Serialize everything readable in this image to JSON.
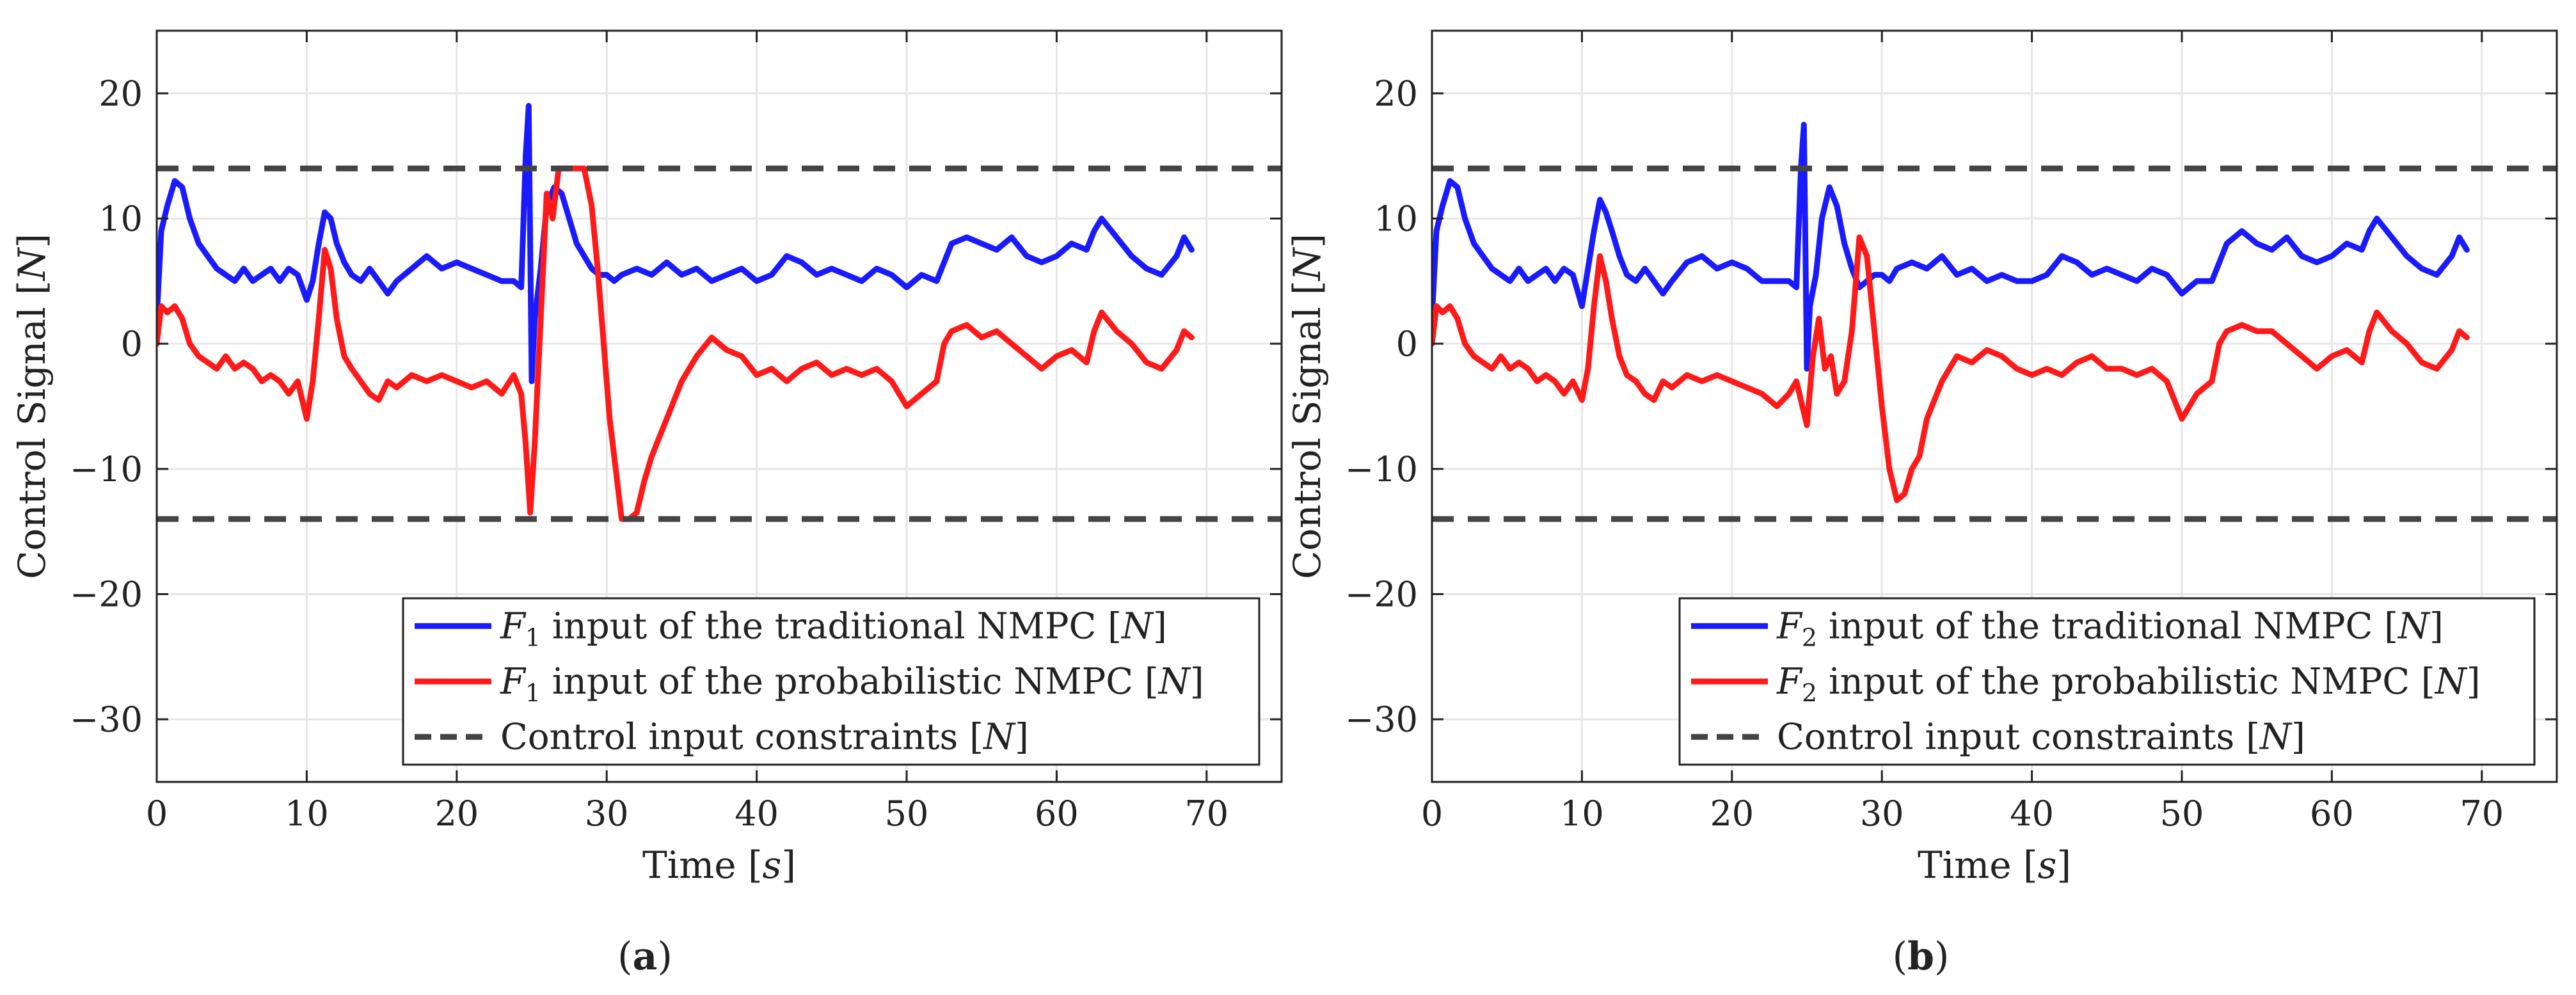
{
  "colors": {
    "traditional": "#1a1aff",
    "probabilistic": "#ff1a1a",
    "constraint": "#444444",
    "grid": "#e6e6e6",
    "axis": "#222222"
  },
  "chart_data": [
    {
      "type": "line",
      "panel_label_parts": [
        "(",
        "a",
        ")"
      ],
      "xlabel": "Time [s]",
      "ylabel": "Control Signal [N]",
      "xlim": [
        0,
        75
      ],
      "ylim": [
        -35,
        25
      ],
      "xticks": [
        0,
        10,
        20,
        30,
        40,
        50,
        60,
        70
      ],
      "yticks": [
        20,
        10,
        0,
        -10,
        -20,
        -30
      ],
      "grid": true,
      "legend_position": "bottom-right",
      "series": [
        {
          "name": "F1 input of the traditional NMPC [N]",
          "legend_symbol": "F",
          "legend_sub": "1",
          "legend_rest": " input of the traditional NMPC [N]",
          "color_key": "traditional",
          "style": "solid",
          "x": [
            0,
            0.3,
            0.7,
            1.2,
            1.7,
            2.2,
            2.8,
            3.4,
            4.0,
            4.6,
            5.2,
            5.8,
            6.4,
            7.0,
            7.6,
            8.2,
            8.8,
            9.4,
            10.0,
            10.4,
            10.8,
            11.2,
            11.6,
            12.0,
            12.5,
            13.0,
            13.6,
            14.2,
            14.8,
            15.4,
            16.0,
            17.0,
            18.0,
            19.0,
            20.0,
            21.0,
            22.0,
            23.0,
            23.8,
            24.3,
            24.6,
            24.8,
            25.0,
            25.2,
            25.6,
            26.0,
            26.5,
            27.0,
            27.5,
            28.0,
            28.5,
            29.0,
            29.5,
            30.0,
            30.5,
            31.0,
            32.0,
            33.0,
            34.0,
            35.0,
            36.0,
            37.0,
            38.0,
            39.0,
            40.0,
            41.0,
            42.0,
            43.0,
            44.0,
            45.0,
            46.0,
            47.0,
            48.0,
            49.0,
            50.0,
            51.0,
            52.0,
            52.5,
            53.0,
            54.0,
            55.0,
            56.0,
            57.0,
            58.0,
            59.0,
            60.0,
            61.0,
            62.0,
            62.5,
            63.0,
            64.0,
            65.0,
            66.0,
            67.0,
            68.0,
            68.5,
            69.0
          ],
          "y": [
            2,
            9,
            11,
            13,
            12.5,
            10,
            8,
            7,
            6,
            5.5,
            5,
            6,
            5,
            5.5,
            6,
            5,
            6,
            5.5,
            3.5,
            5,
            8,
            10.5,
            10,
            8,
            6.5,
            5.5,
            5,
            6,
            5,
            4,
            5,
            6,
            7,
            6,
            6.5,
            6,
            5.5,
            5,
            5,
            4.5,
            15,
            19,
            -3,
            2,
            6,
            11,
            12.5,
            12,
            10,
            8,
            7,
            6,
            5.5,
            5.5,
            5,
            5.5,
            6,
            5.5,
            6.5,
            5.5,
            6,
            5,
            5.5,
            6,
            5,
            5.5,
            7,
            6.5,
            5.5,
            6,
            5.5,
            5,
            6,
            5.5,
            4.5,
            5.5,
            5,
            6.5,
            8,
            8.5,
            8,
            7.5,
            8.5,
            7,
            6.5,
            7,
            8,
            7.5,
            9,
            10,
            8.5,
            7,
            6,
            5.5,
            7,
            8.5,
            7.5
          ]
        },
        {
          "name": "F1 input of the probabilistic NMPC [N]",
          "legend_symbol": "F",
          "legend_sub": "1",
          "legend_rest": " input of the probabilistic NMPC [N]",
          "color_key": "probabilistic",
          "style": "solid",
          "x": [
            0,
            0.3,
            0.7,
            1.2,
            1.7,
            2.2,
            2.8,
            3.4,
            4.0,
            4.6,
            5.2,
            5.8,
            6.4,
            7.0,
            7.6,
            8.2,
            8.8,
            9.4,
            10.0,
            10.4,
            10.8,
            11.2,
            11.6,
            12.0,
            12.5,
            13.0,
            13.6,
            14.2,
            14.8,
            15.4,
            16.0,
            17.0,
            18.0,
            19.0,
            20.0,
            21.0,
            22.0,
            23.0,
            23.8,
            24.3,
            24.6,
            24.9,
            25.2,
            25.6,
            26.0,
            26.4,
            26.8,
            27.2,
            27.6,
            28.0,
            28.5,
            29.0,
            29.4,
            29.8,
            30.2,
            30.6,
            31.0,
            31.5,
            32.0,
            32.5,
            33.0,
            34.0,
            35.0,
            36.0,
            37.0,
            38.0,
            39.0,
            40.0,
            41.0,
            42.0,
            43.0,
            44.0,
            45.0,
            46.0,
            47.0,
            48.0,
            49.0,
            50.0,
            51.0,
            52.0,
            52.5,
            53.0,
            54.0,
            55.0,
            56.0,
            57.0,
            58.0,
            59.0,
            60.0,
            61.0,
            62.0,
            62.5,
            63.0,
            64.0,
            65.0,
            66.0,
            67.0,
            68.0,
            68.5,
            69.0
          ],
          "y": [
            0,
            3,
            2.5,
            3,
            2,
            0,
            -1,
            -1.5,
            -2,
            -1,
            -2,
            -1.5,
            -2,
            -3,
            -2.5,
            -3,
            -4,
            -3,
            -6,
            -3,
            2,
            7.5,
            6,
            2,
            -1,
            -2,
            -3,
            -4,
            -4.5,
            -3,
            -3.5,
            -2.5,
            -3,
            -2.5,
            -3,
            -3.5,
            -3,
            -4,
            -2.5,
            -4,
            -8,
            -13.5,
            -8,
            2,
            12,
            10,
            14,
            14,
            14,
            14,
            14,
            11,
            6,
            0,
            -6,
            -10,
            -14,
            -14,
            -13.5,
            -11,
            -9,
            -6,
            -3,
            -1,
            0.5,
            -0.5,
            -1,
            -2.5,
            -2,
            -3,
            -2,
            -1.5,
            -2.5,
            -2,
            -2.5,
            -2,
            -3,
            -5,
            -4,
            -3,
            0,
            1,
            1.5,
            0.5,
            1,
            0,
            -1,
            -2,
            -1,
            -0.5,
            -1.5,
            1,
            2.5,
            1,
            0,
            -1.5,
            -2,
            -0.5,
            1,
            0.5
          ]
        },
        {
          "name": "Control input constraints [N]",
          "legend_symbol": "",
          "legend_sub": "",
          "legend_rest": "Control input constraints [N]",
          "color_key": "constraint",
          "style": "dashed",
          "levels": [
            14,
            -14
          ]
        }
      ]
    },
    {
      "type": "line",
      "panel_label_parts": [
        "(",
        "b",
        ")"
      ],
      "xlabel": "Time [s]",
      "ylabel": "Control Signal [N]",
      "xlim": [
        0,
        75
      ],
      "ylim": [
        -35,
        25
      ],
      "xticks": [
        0,
        10,
        20,
        30,
        40,
        50,
        60,
        70
      ],
      "yticks": [
        20,
        10,
        0,
        -10,
        -20,
        -30
      ],
      "grid": true,
      "legend_position": "bottom-right",
      "series": [
        {
          "name": "F2 input of the traditional NMPC [N]",
          "legend_symbol": "F",
          "legend_sub": "2",
          "legend_rest": " input of the traditional NMPC [N]",
          "color_key": "traditional",
          "style": "solid",
          "x": [
            0,
            0.3,
            0.7,
            1.2,
            1.7,
            2.2,
            2.8,
            3.4,
            4.0,
            4.6,
            5.2,
            5.8,
            6.4,
            7.0,
            7.6,
            8.2,
            8.8,
            9.4,
            10.0,
            10.4,
            10.8,
            11.2,
            11.6,
            12.0,
            12.5,
            13.0,
            13.6,
            14.2,
            14.8,
            15.4,
            16.0,
            17.0,
            18.0,
            19.0,
            20.0,
            21.0,
            22.0,
            23.0,
            23.8,
            24.3,
            24.6,
            24.8,
            25.0,
            25.2,
            25.6,
            26.0,
            26.5,
            27.0,
            27.5,
            28.0,
            28.5,
            29.0,
            29.5,
            30.0,
            30.5,
            31.0,
            32.0,
            33.0,
            34.0,
            35.0,
            36.0,
            37.0,
            38.0,
            39.0,
            40.0,
            41.0,
            42.0,
            43.0,
            44.0,
            45.0,
            46.0,
            47.0,
            48.0,
            49.0,
            50.0,
            51.0,
            52.0,
            52.5,
            53.0,
            54.0,
            55.0,
            56.0,
            57.0,
            58.0,
            59.0,
            60.0,
            61.0,
            62.0,
            62.5,
            63.0,
            64.0,
            65.0,
            66.0,
            67.0,
            68.0,
            68.5,
            69.0
          ],
          "y": [
            2,
            9,
            11,
            13,
            12.5,
            10,
            8,
            7,
            6,
            5.5,
            5,
            6,
            5,
            5.5,
            6,
            5,
            6,
            5.5,
            3,
            6,
            9,
            11.5,
            10.5,
            9,
            7,
            5.5,
            5,
            6,
            5,
            4,
            5,
            6.5,
            7,
            6,
            6.5,
            6,
            5,
            5,
            5,
            4.5,
            14,
            17.5,
            -2,
            3,
            5.5,
            10,
            12.5,
            11,
            8,
            6,
            4.5,
            5,
            5.5,
            5.5,
            5,
            6,
            6.5,
            6,
            7,
            5.5,
            6,
            5,
            5.5,
            5,
            5,
            5.5,
            7,
            6.5,
            5.5,
            6,
            5.5,
            5,
            6,
            5.5,
            4,
            5,
            5,
            6.5,
            8,
            9,
            8,
            7.5,
            8.5,
            7,
            6.5,
            7,
            8,
            7.5,
            9,
            10,
            8.5,
            7,
            6,
            5.5,
            7,
            8.5,
            7.5
          ]
        },
        {
          "name": "F2 input of the probabilistic NMPC [N]",
          "legend_symbol": "F",
          "legend_sub": "2",
          "legend_rest": " input of the probabilistic NMPC [N]",
          "color_key": "probabilistic",
          "style": "solid",
          "x": [
            0,
            0.3,
            0.7,
            1.2,
            1.7,
            2.2,
            2.8,
            3.4,
            4.0,
            4.6,
            5.2,
            5.8,
            6.4,
            7.0,
            7.6,
            8.2,
            8.8,
            9.4,
            10.0,
            10.4,
            10.8,
            11.2,
            11.6,
            12.0,
            12.5,
            13.0,
            13.6,
            14.2,
            14.8,
            15.4,
            16.0,
            17.0,
            18.0,
            19.0,
            20.0,
            21.0,
            22.0,
            23.0,
            23.8,
            24.3,
            24.6,
            25.0,
            25.4,
            25.8,
            26.2,
            26.6,
            27.0,
            27.5,
            28.0,
            28.5,
            29.0,
            29.5,
            30.0,
            30.5,
            31.0,
            31.5,
            32.0,
            32.5,
            33.0,
            34.0,
            35.0,
            36.0,
            37.0,
            38.0,
            39.0,
            40.0,
            41.0,
            42.0,
            43.0,
            44.0,
            45.0,
            46.0,
            47.0,
            48.0,
            49.0,
            50.0,
            51.0,
            52.0,
            52.5,
            53.0,
            54.0,
            55.0,
            56.0,
            57.0,
            58.0,
            59.0,
            60.0,
            61.0,
            62.0,
            62.5,
            63.0,
            64.0,
            65.0,
            66.0,
            67.0,
            68.0,
            68.5,
            69.0
          ],
          "y": [
            0,
            3,
            2.5,
            3,
            2,
            0,
            -1,
            -1.5,
            -2,
            -1,
            -2,
            -1.5,
            -2,
            -3,
            -2.5,
            -3,
            -4,
            -3,
            -4.5,
            -2,
            3,
            7,
            5,
            2,
            -1,
            -2.5,
            -3,
            -4,
            -4.5,
            -3,
            -3.5,
            -2.5,
            -3,
            -2.5,
            -3,
            -3.5,
            -4,
            -5,
            -4,
            -3,
            -4.5,
            -6.5,
            -1,
            2,
            -2,
            -1,
            -4,
            -3,
            1,
            8.5,
            7,
            1,
            -5,
            -10,
            -12.5,
            -12,
            -10,
            -9,
            -6,
            -3,
            -1,
            -1.5,
            -0.5,
            -1,
            -2,
            -2.5,
            -2,
            -2.5,
            -1.5,
            -1,
            -2,
            -2,
            -2.5,
            -2,
            -3,
            -6,
            -4,
            -3,
            0,
            1,
            1.5,
            1,
            1,
            0,
            -1,
            -2,
            -1,
            -0.5,
            -1.5,
            1,
            2.5,
            1,
            0,
            -1.5,
            -2,
            -0.5,
            1,
            0.5
          ]
        },
        {
          "name": "Control input constraints [N]",
          "legend_symbol": "",
          "legend_sub": "",
          "legend_rest": "Control input constraints [N]",
          "color_key": "constraint",
          "style": "dashed",
          "levels": [
            14,
            -14
          ]
        }
      ]
    }
  ]
}
